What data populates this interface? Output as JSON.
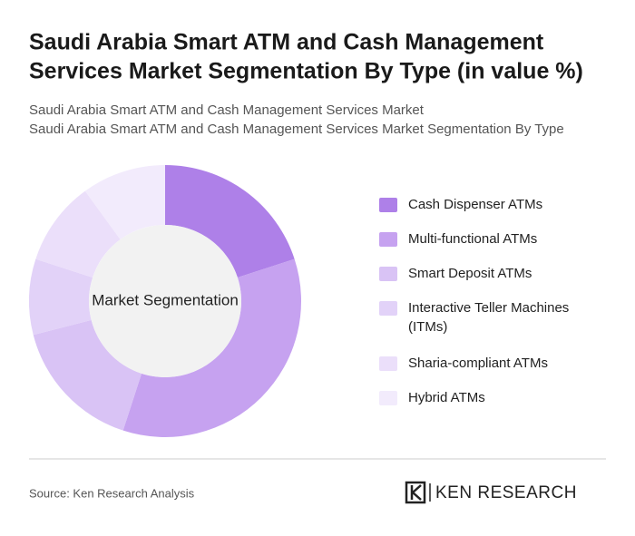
{
  "chart_data": {
    "type": "pie",
    "title": [
      "Saudi Arabia Smart ATM and Cash Management",
      "Services Market Segmentation By Type (in value %)"
    ],
    "subtitle": [
      "Saudi Arabia Smart ATM and Cash Management Services Market",
      "Saudi Arabia Smart ATM and Cash Management Services Market Segmentation By Type"
    ],
    "center_label": "Market Segmentation",
    "categories": [
      [
        "Cash Dispenser ATMs"
      ],
      [
        "Multi-functional ATMs"
      ],
      [
        "Smart Deposit ATMs"
      ],
      [
        "Interactive Teller Machines",
        "(ITMs)"
      ],
      [
        "Sharia-compliant ATMs"
      ],
      [
        "Hybrid ATMs"
      ]
    ],
    "values": [
      20,
      35,
      16,
      9,
      10,
      10
    ],
    "colors": [
      "#ae80e8",
      "#c6a2f0",
      "#d9c3f5",
      "#e2d2f8",
      "#ebdffa",
      "#f2ebfc"
    ],
    "legend": "right"
  },
  "source": "Source: Ken Research Analysis",
  "logo": "KEN RESEARCH"
}
